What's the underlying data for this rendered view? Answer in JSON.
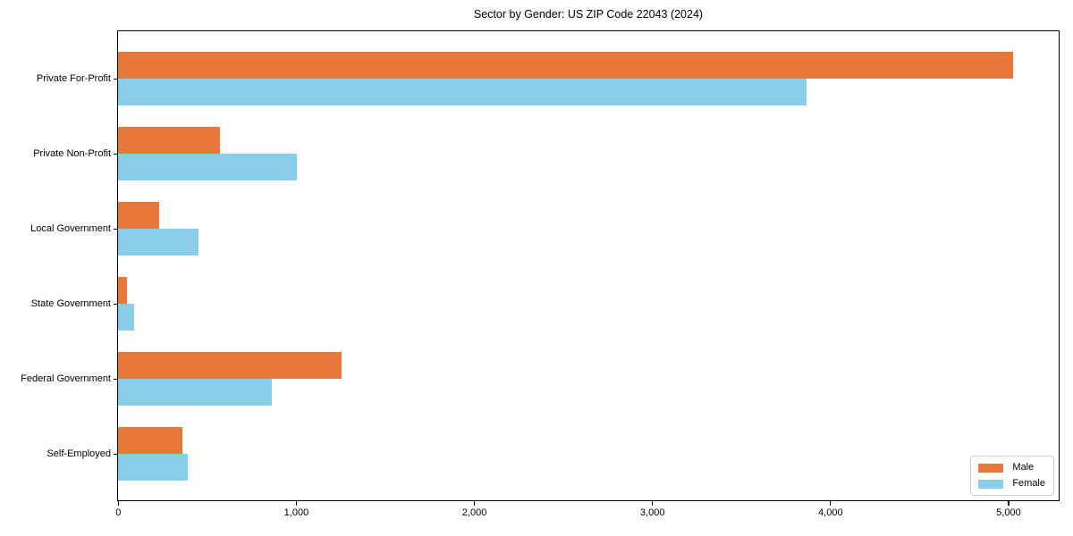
{
  "chart_data": {
    "type": "bar",
    "orientation": "horizontal",
    "title": "Sector by Gender: US ZIP Code 22043 (2024)",
    "categories": [
      "Private For-Profit",
      "Private Non-Profit",
      "Local Government",
      "State Government",
      "Federal Government",
      "Self-Employed"
    ],
    "series": [
      {
        "name": "Male",
        "color": "#e8773b",
        "values": [
          5025,
          573,
          229,
          52,
          1254,
          362
        ]
      },
      {
        "name": "Female",
        "color": "#89cde8",
        "values": [
          3865,
          1002,
          451,
          92,
          863,
          392
        ]
      }
    ],
    "xlabel": "",
    "ylabel": "",
    "xlim": [
      0,
      5280
    ],
    "xticks": [
      {
        "value": 0,
        "label": "0"
      },
      {
        "value": 1000,
        "label": "1,000"
      },
      {
        "value": 2000,
        "label": "2,000"
      },
      {
        "value": 3000,
        "label": "3,000"
      },
      {
        "value": 4000,
        "label": "4,000"
      },
      {
        "value": 5000,
        "label": "5,000"
      }
    ],
    "grid": false,
    "legend_position": "lower right",
    "spine_color": "#000000",
    "background_color": "#ffffff"
  }
}
